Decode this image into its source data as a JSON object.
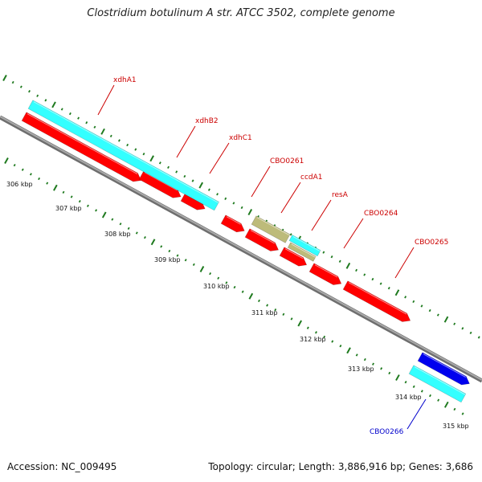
{
  "title": "Clostridium botulinum A str. ATCC 3502, complete genome",
  "footer": {
    "accession": "Accession: NC_009495",
    "summary": "Topology: circular; Length: 3,886,916 bp; Genes: 3,686"
  },
  "colors": {
    "backbone": "#8a8a8a",
    "tick": "#1f7a1f",
    "red": "#ff0000",
    "cyan": "#33ffff",
    "olive": "#bdbb7a",
    "blue": "#0000ee",
    "label_red": "#cc0000",
    "label_blue": "#0000cc"
  },
  "scale_labels": [
    "306 kbp",
    "307 kbp",
    "308 kbp",
    "309 kbp",
    "310 kbp",
    "311 kbp",
    "312 kbp",
    "313 kbp",
    "314 kbp",
    "315 kbp"
  ],
  "genes": [
    {
      "name": "xdhA1",
      "color": "red"
    },
    {
      "name": "xdhB2",
      "color": "red"
    },
    {
      "name": "xdhC1",
      "color": "red"
    },
    {
      "name": "CBO0261",
      "color": "red"
    },
    {
      "name": "ccdA1",
      "color": "red"
    },
    {
      "name": "resA",
      "color": "red"
    },
    {
      "name": "CBO0264",
      "color": "red"
    },
    {
      "name": "CBO0265",
      "color": "red"
    },
    {
      "name": "CBO0266",
      "color": "blue"
    }
  ]
}
